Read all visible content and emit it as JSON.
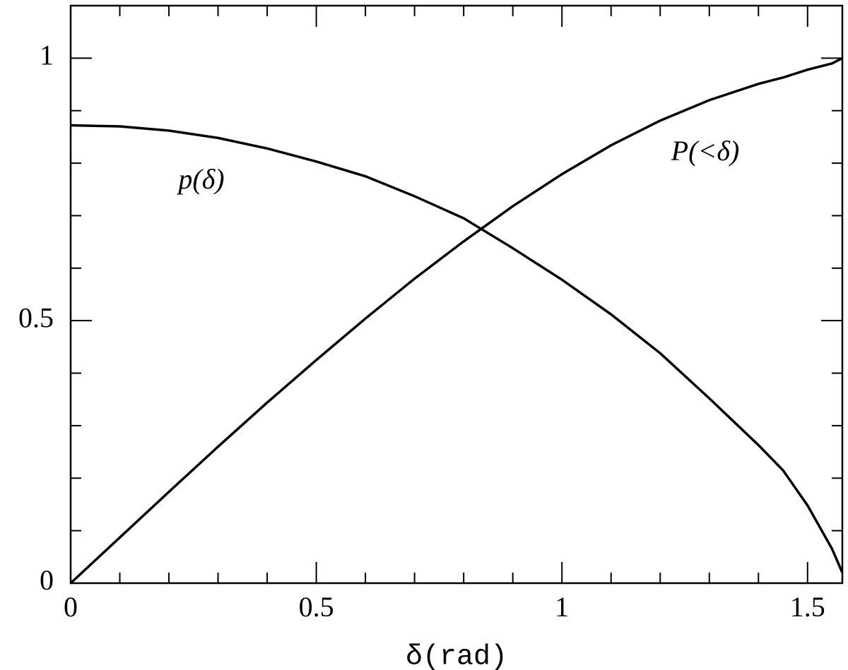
{
  "chart_data": {
    "type": "line",
    "x_label": "δ(rad)",
    "x": [
      0,
      0.1,
      0.2,
      0.3,
      0.4,
      0.5,
      0.6,
      0.7,
      0.8,
      0.9,
      1.0,
      1.1,
      1.2,
      1.3,
      1.4,
      1.45,
      1.5,
      1.55,
      1.5708
    ],
    "series": [
      {
        "name": "p(δ)",
        "color": "#000000",
        "values": [
          0.872,
          0.87,
          0.862,
          0.848,
          0.828,
          0.803,
          0.775,
          0.737,
          0.695,
          0.638,
          0.578,
          0.512,
          0.438,
          0.352,
          0.263,
          0.215,
          0.148,
          0.065,
          0.02
        ]
      },
      {
        "name": "P(<δ)",
        "color": "#000000",
        "values": [
          0,
          0.087,
          0.174,
          0.26,
          0.344,
          0.425,
          0.504,
          0.58,
          0.651,
          0.718,
          0.779,
          0.834,
          0.881,
          0.92,
          0.951,
          0.963,
          0.978,
          0.99,
          1.0
        ]
      }
    ],
    "xlim": [
      0,
      1.5708
    ],
    "ylim": [
      0,
      1.1
    ],
    "xticks": [
      0,
      0.5,
      1,
      1.5
    ],
    "yticks": [
      0,
      0.5,
      1
    ],
    "xminor_ticks": [
      0.1,
      0.2,
      0.3,
      0.4,
      0.6,
      0.7,
      0.8,
      0.9,
      1.1,
      1.2,
      1.3,
      1.4
    ],
    "yminor_ticks": [
      0.1,
      0.2,
      0.3,
      0.4,
      0.6,
      0.7,
      0.8,
      0.9
    ],
    "grid": false
  }
}
